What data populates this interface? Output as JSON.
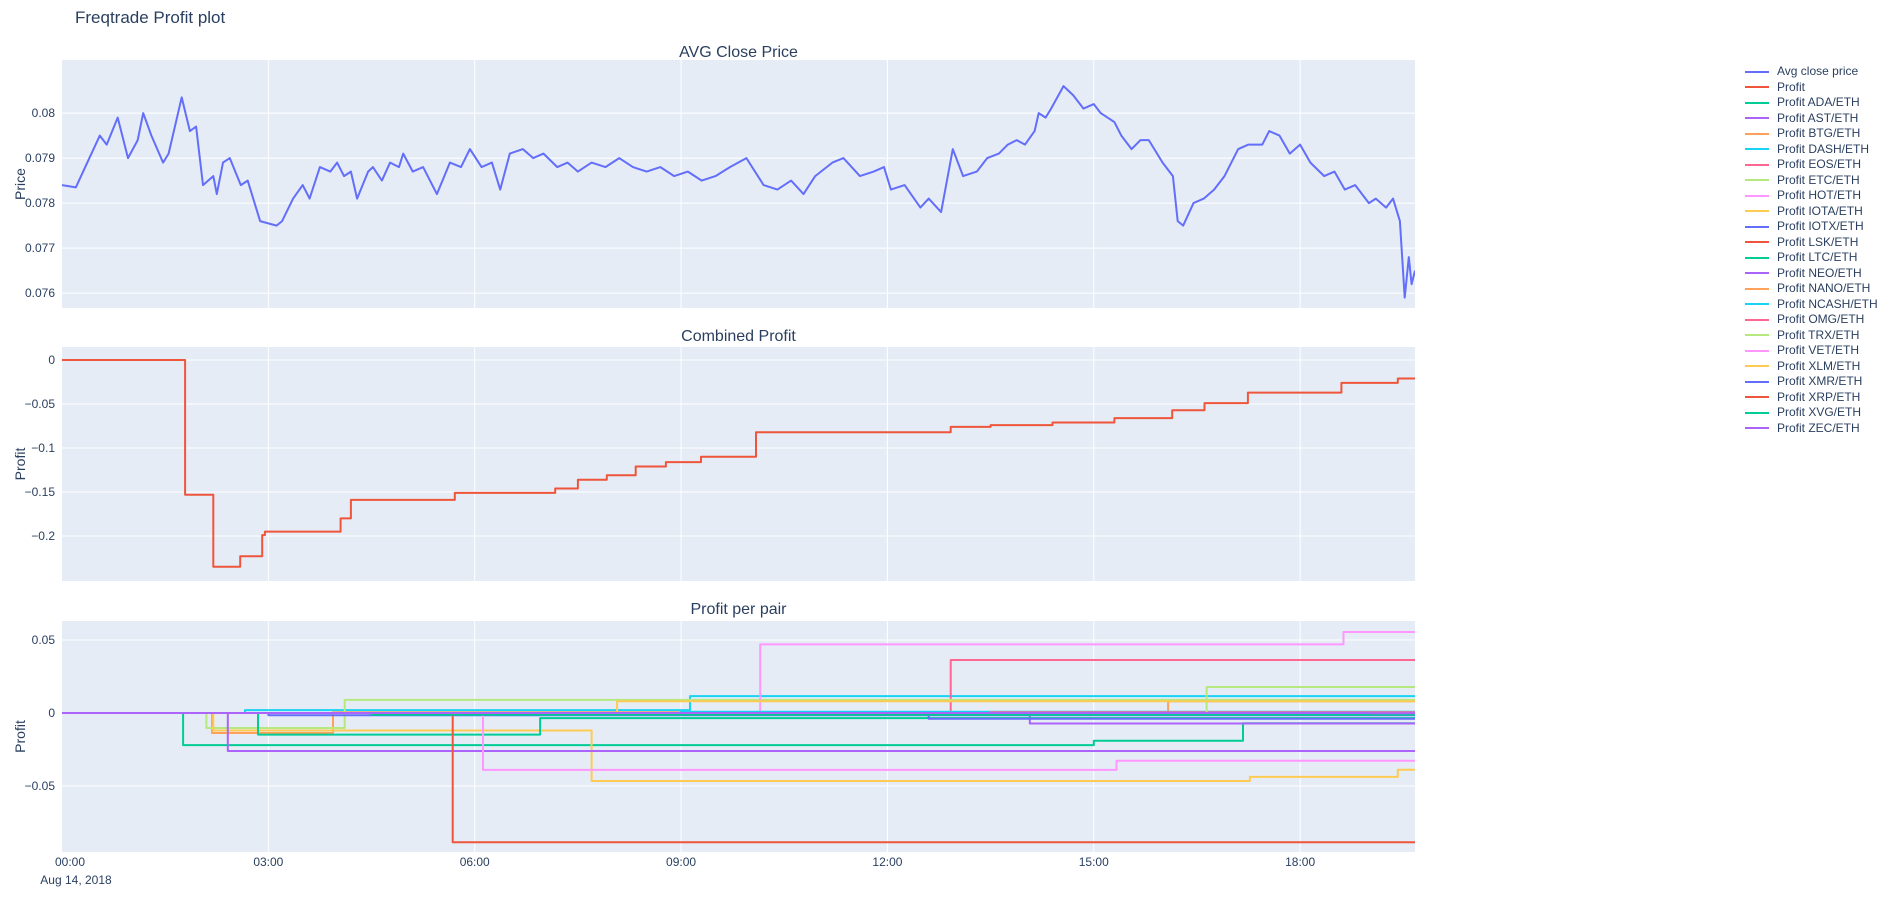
{
  "title": "Freqtrade Profit plot",
  "x_axis": {
    "tick_labels": [
      "00:00",
      "03:00",
      "06:00",
      "09:00",
      "12:00",
      "15:00",
      "18:00"
    ],
    "tick_hours": [
      0,
      3,
      6,
      9,
      12,
      15,
      18
    ],
    "date_label": "Aug 14, 2018",
    "range_hours": [
      0,
      19.67
    ]
  },
  "legend": {
    "items": [
      {
        "label": "Avg close price",
        "color": "#636EFA"
      },
      {
        "label": "Profit",
        "color": "#EF553B"
      },
      {
        "label": "Profit ADA/ETH",
        "color": "#00CC96"
      },
      {
        "label": "Profit AST/ETH",
        "color": "#AB63FA"
      },
      {
        "label": "Profit BTG/ETH",
        "color": "#FFA15A"
      },
      {
        "label": "Profit DASH/ETH",
        "color": "#19D3F3"
      },
      {
        "label": "Profit EOS/ETH",
        "color": "#FF6692"
      },
      {
        "label": "Profit ETC/ETH",
        "color": "#B6E880"
      },
      {
        "label": "Profit HOT/ETH",
        "color": "#FF97FF"
      },
      {
        "label": "Profit IOTA/ETH",
        "color": "#FECB52"
      },
      {
        "label": "Profit IOTX/ETH",
        "color": "#636EFA"
      },
      {
        "label": "Profit LSK/ETH",
        "color": "#EF553B"
      },
      {
        "label": "Profit LTC/ETH",
        "color": "#00CC96"
      },
      {
        "label": "Profit NEO/ETH",
        "color": "#AB63FA"
      },
      {
        "label": "Profit NANO/ETH",
        "color": "#FFA15A"
      },
      {
        "label": "Profit NCASH/ETH",
        "color": "#19D3F3"
      },
      {
        "label": "Profit OMG/ETH",
        "color": "#FF6692"
      },
      {
        "label": "Profit TRX/ETH",
        "color": "#B6E880"
      },
      {
        "label": "Profit VET/ETH",
        "color": "#FF97FF"
      },
      {
        "label": "Profit XLM/ETH",
        "color": "#FECB52"
      },
      {
        "label": "Profit XMR/ETH",
        "color": "#636EFA"
      },
      {
        "label": "Profit XRP/ETH",
        "color": "#EF553B"
      },
      {
        "label": "Profit XVG/ETH",
        "color": "#00CC96"
      },
      {
        "label": "Profit ZEC/ETH",
        "color": "#AB63FA"
      }
    ]
  },
  "chart_data": [
    {
      "type": "line",
      "title": "AVG Close Price",
      "ylabel": "Price",
      "ylim": [
        0.07567,
        0.08118
      ],
      "ytick_values": [
        0.08,
        0.079,
        0.078,
        0.077,
        0.076
      ],
      "ytick_labels": [
        "0.08",
        "0.079",
        "0.078",
        "0.077",
        "0.076"
      ],
      "grid": true,
      "series": [
        {
          "name": "Avg close price",
          "color": "#636EFA",
          "x": [
            0,
            0.2,
            0.55,
            0.65,
            0.81,
            0.96,
            1.1,
            1.18,
            1.3,
            1.47,
            1.55,
            1.74,
            1.86,
            1.95,
            2.05,
            2.2,
            2.25,
            2.34,
            2.44,
            2.6,
            2.7,
            2.88,
            3.12,
            3.2,
            3.36,
            3.5,
            3.6,
            3.75,
            3.9,
            4.0,
            4.1,
            4.2,
            4.29,
            4.45,
            4.52,
            4.65,
            4.77,
            4.9,
            4.96,
            5.1,
            5.25,
            5.45,
            5.64,
            5.8,
            5.93,
            6.1,
            6.25,
            6.37,
            6.51,
            6.7,
            6.85,
            7.0,
            7.2,
            7.35,
            7.5,
            7.7,
            7.9,
            8.1,
            8.3,
            8.5,
            8.7,
            8.9,
            9.1,
            9.3,
            9.5,
            9.71,
            9.95,
            10.2,
            10.4,
            10.6,
            10.78,
            10.95,
            11.2,
            11.36,
            11.6,
            11.8,
            11.95,
            12.05,
            12.25,
            12.48,
            12.6,
            12.78,
            12.95,
            13.1,
            13.3,
            13.45,
            13.62,
            13.75,
            13.88,
            14.0,
            14.14,
            14.2,
            14.3,
            14.38,
            14.56,
            14.7,
            14.85,
            15.0,
            15.1,
            15.3,
            15.4,
            15.55,
            15.68,
            15.8,
            16.0,
            16.15,
            16.22,
            16.3,
            16.45,
            16.6,
            16.75,
            16.9,
            17.1,
            17.25,
            17.45,
            17.55,
            17.7,
            17.85,
            18.0,
            18.15,
            18.35,
            18.5,
            18.65,
            18.8,
            19.0,
            19.1,
            19.25,
            19.35,
            19.45,
            19.52,
            19.58,
            19.62,
            19.67
          ],
          "y": [
            0.0784,
            0.07835,
            0.0795,
            0.0793,
            0.0799,
            0.079,
            0.0794,
            0.08,
            0.0795,
            0.0789,
            0.0791,
            0.08035,
            0.0796,
            0.0797,
            0.0784,
            0.0786,
            0.0782,
            0.0789,
            0.079,
            0.0784,
            0.0785,
            0.0776,
            0.0775,
            0.0776,
            0.0781,
            0.0784,
            0.0781,
            0.0788,
            0.0787,
            0.0789,
            0.0786,
            0.0787,
            0.0781,
            0.0787,
            0.0788,
            0.0785,
            0.0789,
            0.0788,
            0.0791,
            0.0787,
            0.0788,
            0.0782,
            0.0789,
            0.0788,
            0.0792,
            0.0788,
            0.0789,
            0.0783,
            0.0791,
            0.0792,
            0.079,
            0.0791,
            0.0788,
            0.0789,
            0.0787,
            0.0789,
            0.0788,
            0.079,
            0.0788,
            0.0787,
            0.0788,
            0.0786,
            0.0787,
            0.0785,
            0.0786,
            0.0788,
            0.079,
            0.0784,
            0.0783,
            0.0785,
            0.0782,
            0.0786,
            0.0789,
            0.079,
            0.0786,
            0.0787,
            0.0788,
            0.0783,
            0.0784,
            0.0779,
            0.0781,
            0.0778,
            0.0792,
            0.0786,
            0.0787,
            0.079,
            0.0791,
            0.0793,
            0.0794,
            0.0793,
            0.0796,
            0.08,
            0.0799,
            0.0801,
            0.0806,
            0.0804,
            0.0801,
            0.0802,
            0.08,
            0.0798,
            0.0795,
            0.0792,
            0.0794,
            0.0794,
            0.0789,
            0.0786,
            0.0776,
            0.0775,
            0.078,
            0.0781,
            0.0783,
            0.0786,
            0.0792,
            0.0793,
            0.0793,
            0.0796,
            0.0795,
            0.0791,
            0.0793,
            0.0789,
            0.0786,
            0.0787,
            0.0783,
            0.0784,
            0.078,
            0.0781,
            0.0779,
            0.0781,
            0.0776,
            0.0759,
            0.0768,
            0.0762,
            0.0765
          ]
        }
      ]
    },
    {
      "type": "step",
      "title": "Combined Profit",
      "ylabel": "Profit",
      "ylim": [
        -0.2511,
        0.01477
      ],
      "ytick_values": [
        0,
        -0.05,
        -0.1,
        -0.15,
        -0.2
      ],
      "ytick_labels": [
        "0",
        "−0.05",
        "−0.1",
        "−0.15",
        "−0.2"
      ],
      "grid": true,
      "series": [
        {
          "name": "Profit",
          "color": "#EF553B",
          "points": [
            [
              0,
              0
            ],
            [
              1.79,
              -0.153
            ],
            [
              2.2,
              -0.235
            ],
            [
              2.59,
              -0.223
            ],
            [
              2.91,
              -0.199
            ],
            [
              2.95,
              -0.195
            ],
            [
              4.05,
              -0.18
            ],
            [
              4.2,
              -0.159
            ],
            [
              5.71,
              -0.151
            ],
            [
              7.17,
              -0.146
            ],
            [
              7.5,
              -0.136
            ],
            [
              7.92,
              -0.131
            ],
            [
              8.34,
              -0.121
            ],
            [
              8.78,
              -0.116
            ],
            [
              9.29,
              -0.11
            ],
            [
              10.09,
              -0.082
            ],
            [
              12.92,
              -0.076
            ],
            [
              13.5,
              -0.074
            ],
            [
              14.4,
              -0.071
            ],
            [
              15.3,
              -0.066
            ],
            [
              16.14,
              -0.057
            ],
            [
              16.61,
              -0.049
            ],
            [
              17.24,
              -0.037
            ],
            [
              18.6,
              -0.026
            ],
            [
              19.42,
              -0.021
            ]
          ]
        }
      ]
    },
    {
      "type": "step",
      "title": "Profit per pair",
      "ylabel": "Profit",
      "ylim": [
        -0.09521,
        0.06301
      ],
      "ytick_values": [
        0.05,
        0,
        -0.05
      ],
      "ytick_labels": [
        "0.05",
        "0",
        "−0.05"
      ],
      "grid": true,
      "series": [
        {
          "name": "Profit ADA/ETH",
          "color": "#00CC96",
          "points": [
            [
              0,
              0
            ],
            [
              1.76,
              -0.022
            ],
            [
              15.0,
              -0.019
            ],
            [
              17.17,
              -0.007
            ]
          ]
        },
        {
          "name": "Profit AST/ETH",
          "color": "#AB63FA",
          "points": [
            [
              0,
              0
            ],
            [
              14.07,
              -0.0072
            ]
          ]
        },
        {
          "name": "Profit BTG/ETH",
          "color": "#FFA15A",
          "points": [
            [
              0,
              0
            ],
            [
              2.18,
              -0.0137
            ],
            [
              3.94,
              0.0005
            ],
            [
              16.08,
              0.008
            ]
          ]
        },
        {
          "name": "Profit DASH/ETH",
          "color": "#19D3F3",
          "points": [
            [
              0,
              0
            ],
            [
              2.66,
              0.002
            ],
            [
              9.13,
              0.0116
            ]
          ]
        },
        {
          "name": "Profit EOS/ETH",
          "color": "#FF6692",
          "points": [
            [
              0,
              0
            ],
            [
              12.92,
              0.0363
            ]
          ]
        },
        {
          "name": "Profit ETC/ETH",
          "color": "#B6E880",
          "points": [
            [
              0,
              0
            ],
            [
              2.1,
              -0.0103
            ],
            [
              4.11,
              0.009
            ]
          ]
        },
        {
          "name": "Profit HOT/ETH",
          "color": "#FF97FF",
          "points": [
            [
              0,
              0
            ],
            [
              10.15,
              0.047
            ],
            [
              18.63,
              0.0555
            ]
          ]
        },
        {
          "name": "Profit IOTA/ETH",
          "color": "#FECB52",
          "points": [
            [
              0,
              0
            ],
            [
              2.2,
              -0.012
            ],
            [
              7.7,
              -0.0466
            ],
            [
              17.27,
              -0.0438
            ],
            [
              19.42,
              -0.0389
            ]
          ]
        },
        {
          "name": "Profit IOTX/ETH",
          "color": "#636EFA",
          "points": [
            [
              0,
              0
            ],
            [
              3.0,
              -0.0015
            ]
          ]
        },
        {
          "name": "Profit LSK/ETH",
          "color": "#EF553B",
          "points": [
            [
              0,
              0
            ],
            [
              5.0,
              -0.0008
            ]
          ]
        },
        {
          "name": "Profit LTC/ETH",
          "color": "#00CC96",
          "points": [
            [
              0,
              0
            ],
            [
              2.85,
              -0.0148
            ],
            [
              6.95,
              -0.0035
            ]
          ]
        },
        {
          "name": "Profit NEO/ETH",
          "color": "#AB63FA",
          "points": [
            [
              0,
              0
            ],
            [
              2.41,
              -0.026
            ]
          ]
        },
        {
          "name": "Profit NANO/ETH",
          "color": "#FFA15A",
          "points": [
            [
              0,
              0
            ],
            [
              6.0,
              -0.001
            ]
          ]
        },
        {
          "name": "Profit NCASH/ETH",
          "color": "#19D3F3",
          "points": [
            [
              0,
              0
            ],
            [
              9.0,
              0.0008
            ]
          ]
        },
        {
          "name": "Profit OMG/ETH",
          "color": "#FF6692",
          "points": [
            [
              0,
              0
            ],
            [
              13.5,
              0.0005
            ]
          ]
        },
        {
          "name": "Profit TRX/ETH",
          "color": "#B6E880",
          "points": [
            [
              0,
              0
            ],
            [
              16.64,
              0.0178
            ]
          ]
        },
        {
          "name": "Profit VET/ETH",
          "color": "#FF97FF",
          "points": [
            [
              0,
              0
            ],
            [
              6.12,
              -0.039
            ],
            [
              15.33,
              -0.0327
            ]
          ]
        },
        {
          "name": "Profit XLM/ETH",
          "color": "#FECB52",
          "points": [
            [
              0,
              0
            ],
            [
              8.07,
              0.008
            ]
          ]
        },
        {
          "name": "Profit XMR/ETH",
          "color": "#636EFA",
          "points": [
            [
              0,
              0
            ],
            [
              12.6,
              -0.004
            ]
          ]
        },
        {
          "name": "Profit XRP/ETH",
          "color": "#EF553B",
          "points": [
            [
              0,
              0
            ],
            [
              5.68,
              -0.0885
            ]
          ]
        },
        {
          "name": "Profit XVG/ETH",
          "color": "#00CC96",
          "points": [
            [
              0,
              0
            ],
            [
              4.5,
              -0.0012
            ]
          ]
        },
        {
          "name": "Profit ZEC/ETH",
          "color": "#AB63FA",
          "points": [
            [
              0,
              0
            ],
            [
              19.0,
              -0.0002
            ]
          ]
        }
      ]
    }
  ],
  "style": {
    "plot_bg": "#E5ECF6",
    "grid_color": "#FFFFFF",
    "text_color": "#2a3f5f"
  }
}
